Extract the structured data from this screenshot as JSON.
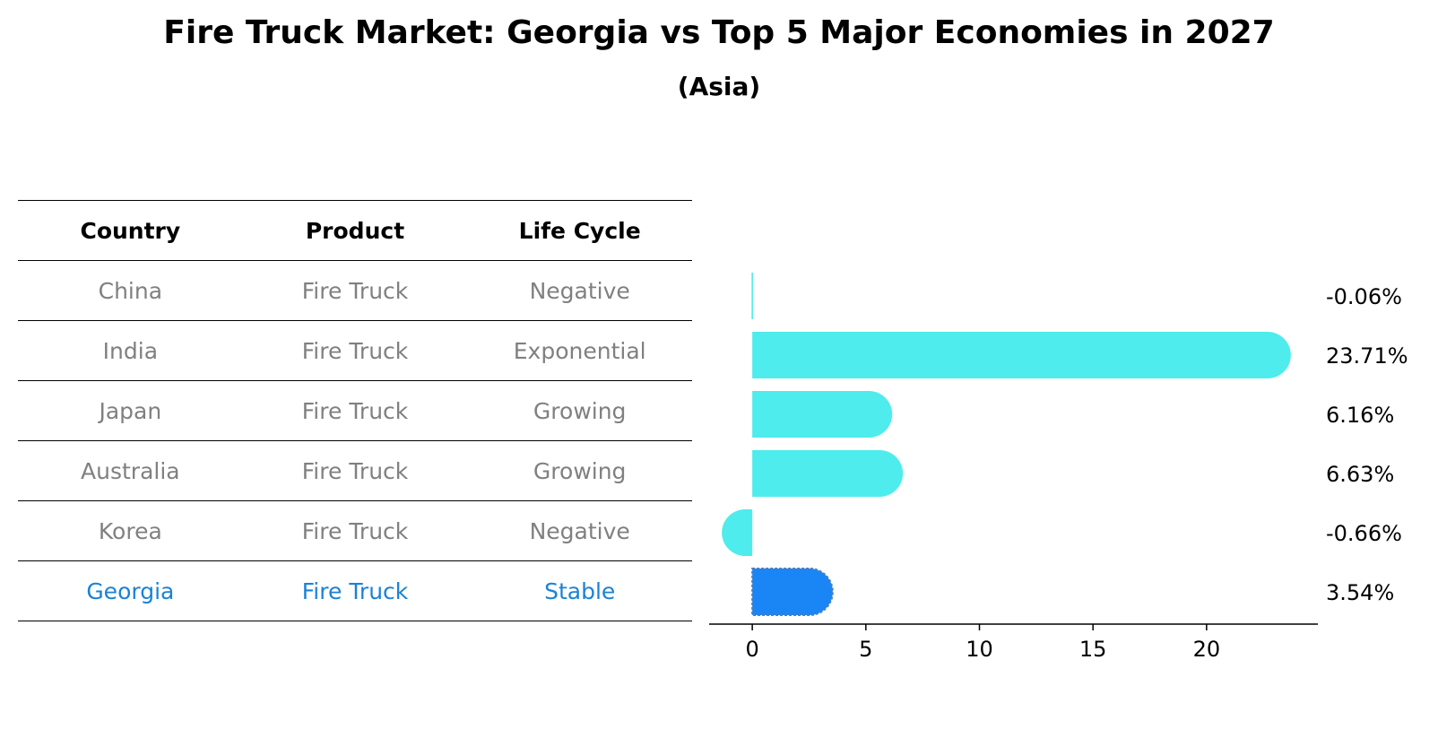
{
  "title": "Fire Truck Market: Georgia vs Top 5 Major Economies in 2027",
  "subtitle": "(Asia)",
  "table": {
    "headers": [
      "Country",
      "Product",
      "Life Cycle"
    ],
    "rows": [
      [
        "China",
        "Fire Truck",
        "Negative"
      ],
      [
        "India",
        "Fire Truck",
        "Exponential"
      ],
      [
        "Japan",
        "Fire Truck",
        "Growing"
      ],
      [
        "Australia",
        "Fire Truck",
        "Growing"
      ],
      [
        "Korea",
        "Fire Truck",
        "Negative"
      ],
      [
        "Georgia",
        "Fire Truck",
        "Stable"
      ]
    ],
    "highlight_row": "Georgia",
    "highlight_color": "#1a82d6",
    "text_color": "#808080"
  },
  "chart_data": {
    "type": "bar",
    "orientation": "horizontal",
    "categories": [
      "China",
      "India",
      "Japan",
      "Australia",
      "Korea",
      "Georgia"
    ],
    "values": [
      -0.06,
      23.71,
      6.16,
      6.63,
      -0.66,
      3.54
    ],
    "value_labels": [
      "-0.06%",
      "23.71%",
      "6.16%",
      "6.63%",
      "-0.66%",
      "3.54%"
    ],
    "xlim": [
      -1.9,
      24.9
    ],
    "xticks": [
      0,
      5,
      10,
      15,
      20
    ],
    "bar_color": "#4eecec",
    "highlight_color": "#1a85f5",
    "highlight_category": "Georgia",
    "grid": false
  }
}
